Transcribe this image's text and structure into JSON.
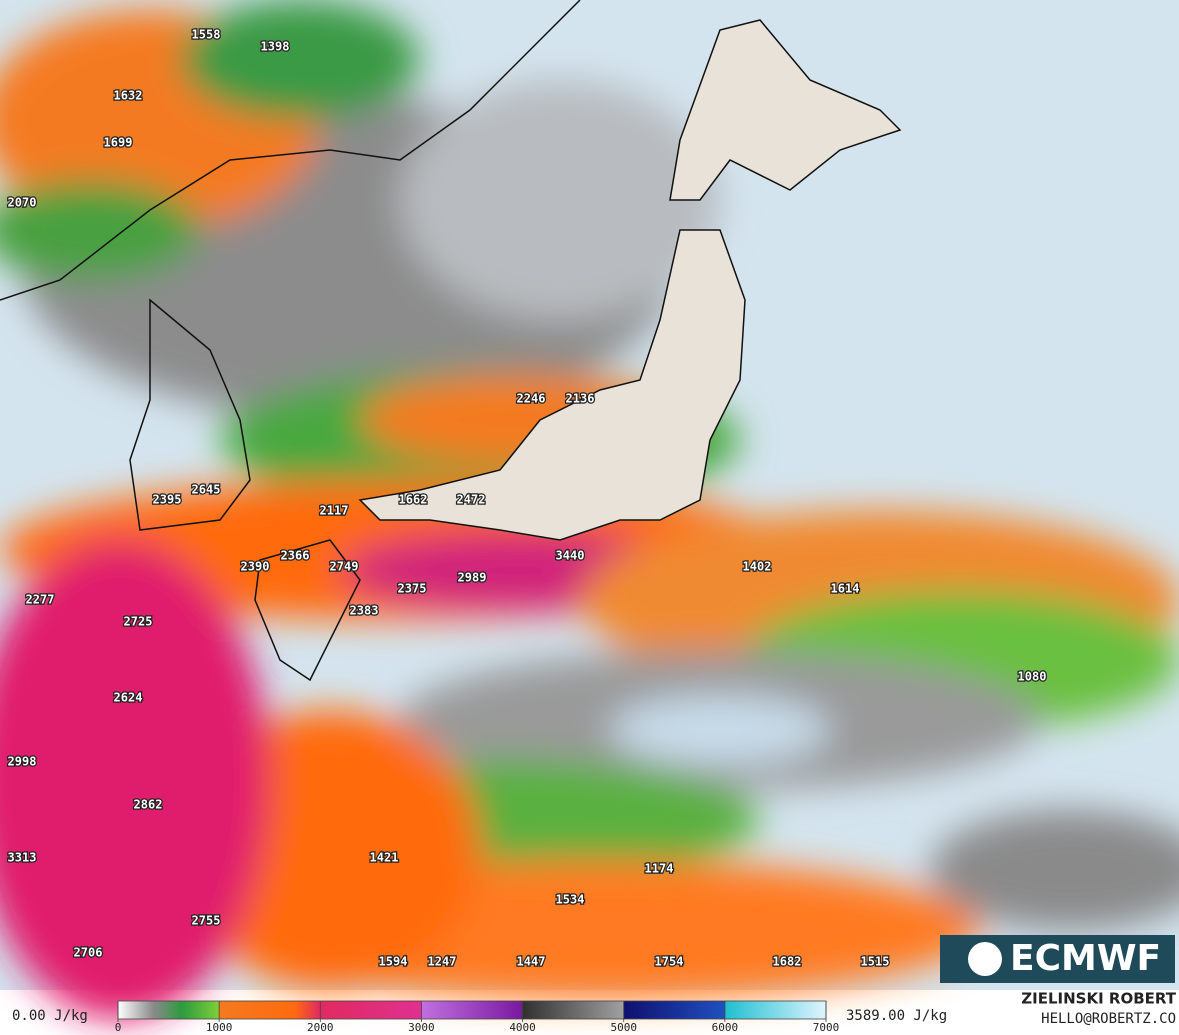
{
  "map": {
    "labels": [
      1558,
      1398,
      1632,
      1699,
      2070,
      2246,
      2136,
      2395,
      2645,
      1662,
      2472,
      2117,
      2366,
      3440,
      2390,
      2749,
      2989,
      2375,
      1402,
      1614,
      2277,
      2725,
      2383,
      1080,
      2624,
      2998,
      2862,
      3313,
      1421,
      1174,
      1534,
      2755,
      2706,
      1594,
      1247,
      1447,
      1754,
      1682,
      1515
    ],
    "logo": "ECMWF"
  },
  "colorbar": {
    "min_label": "0.00 J/kg",
    "max_label": "3589.00 J/kg",
    "ticks": [
      0,
      1000,
      2000,
      3000,
      4000,
      5000,
      6000,
      7000
    ]
  },
  "credits": {
    "name": "ZIELINSKI ROBERT",
    "contact": "HELLO@ROBERTZ.CO"
  }
}
